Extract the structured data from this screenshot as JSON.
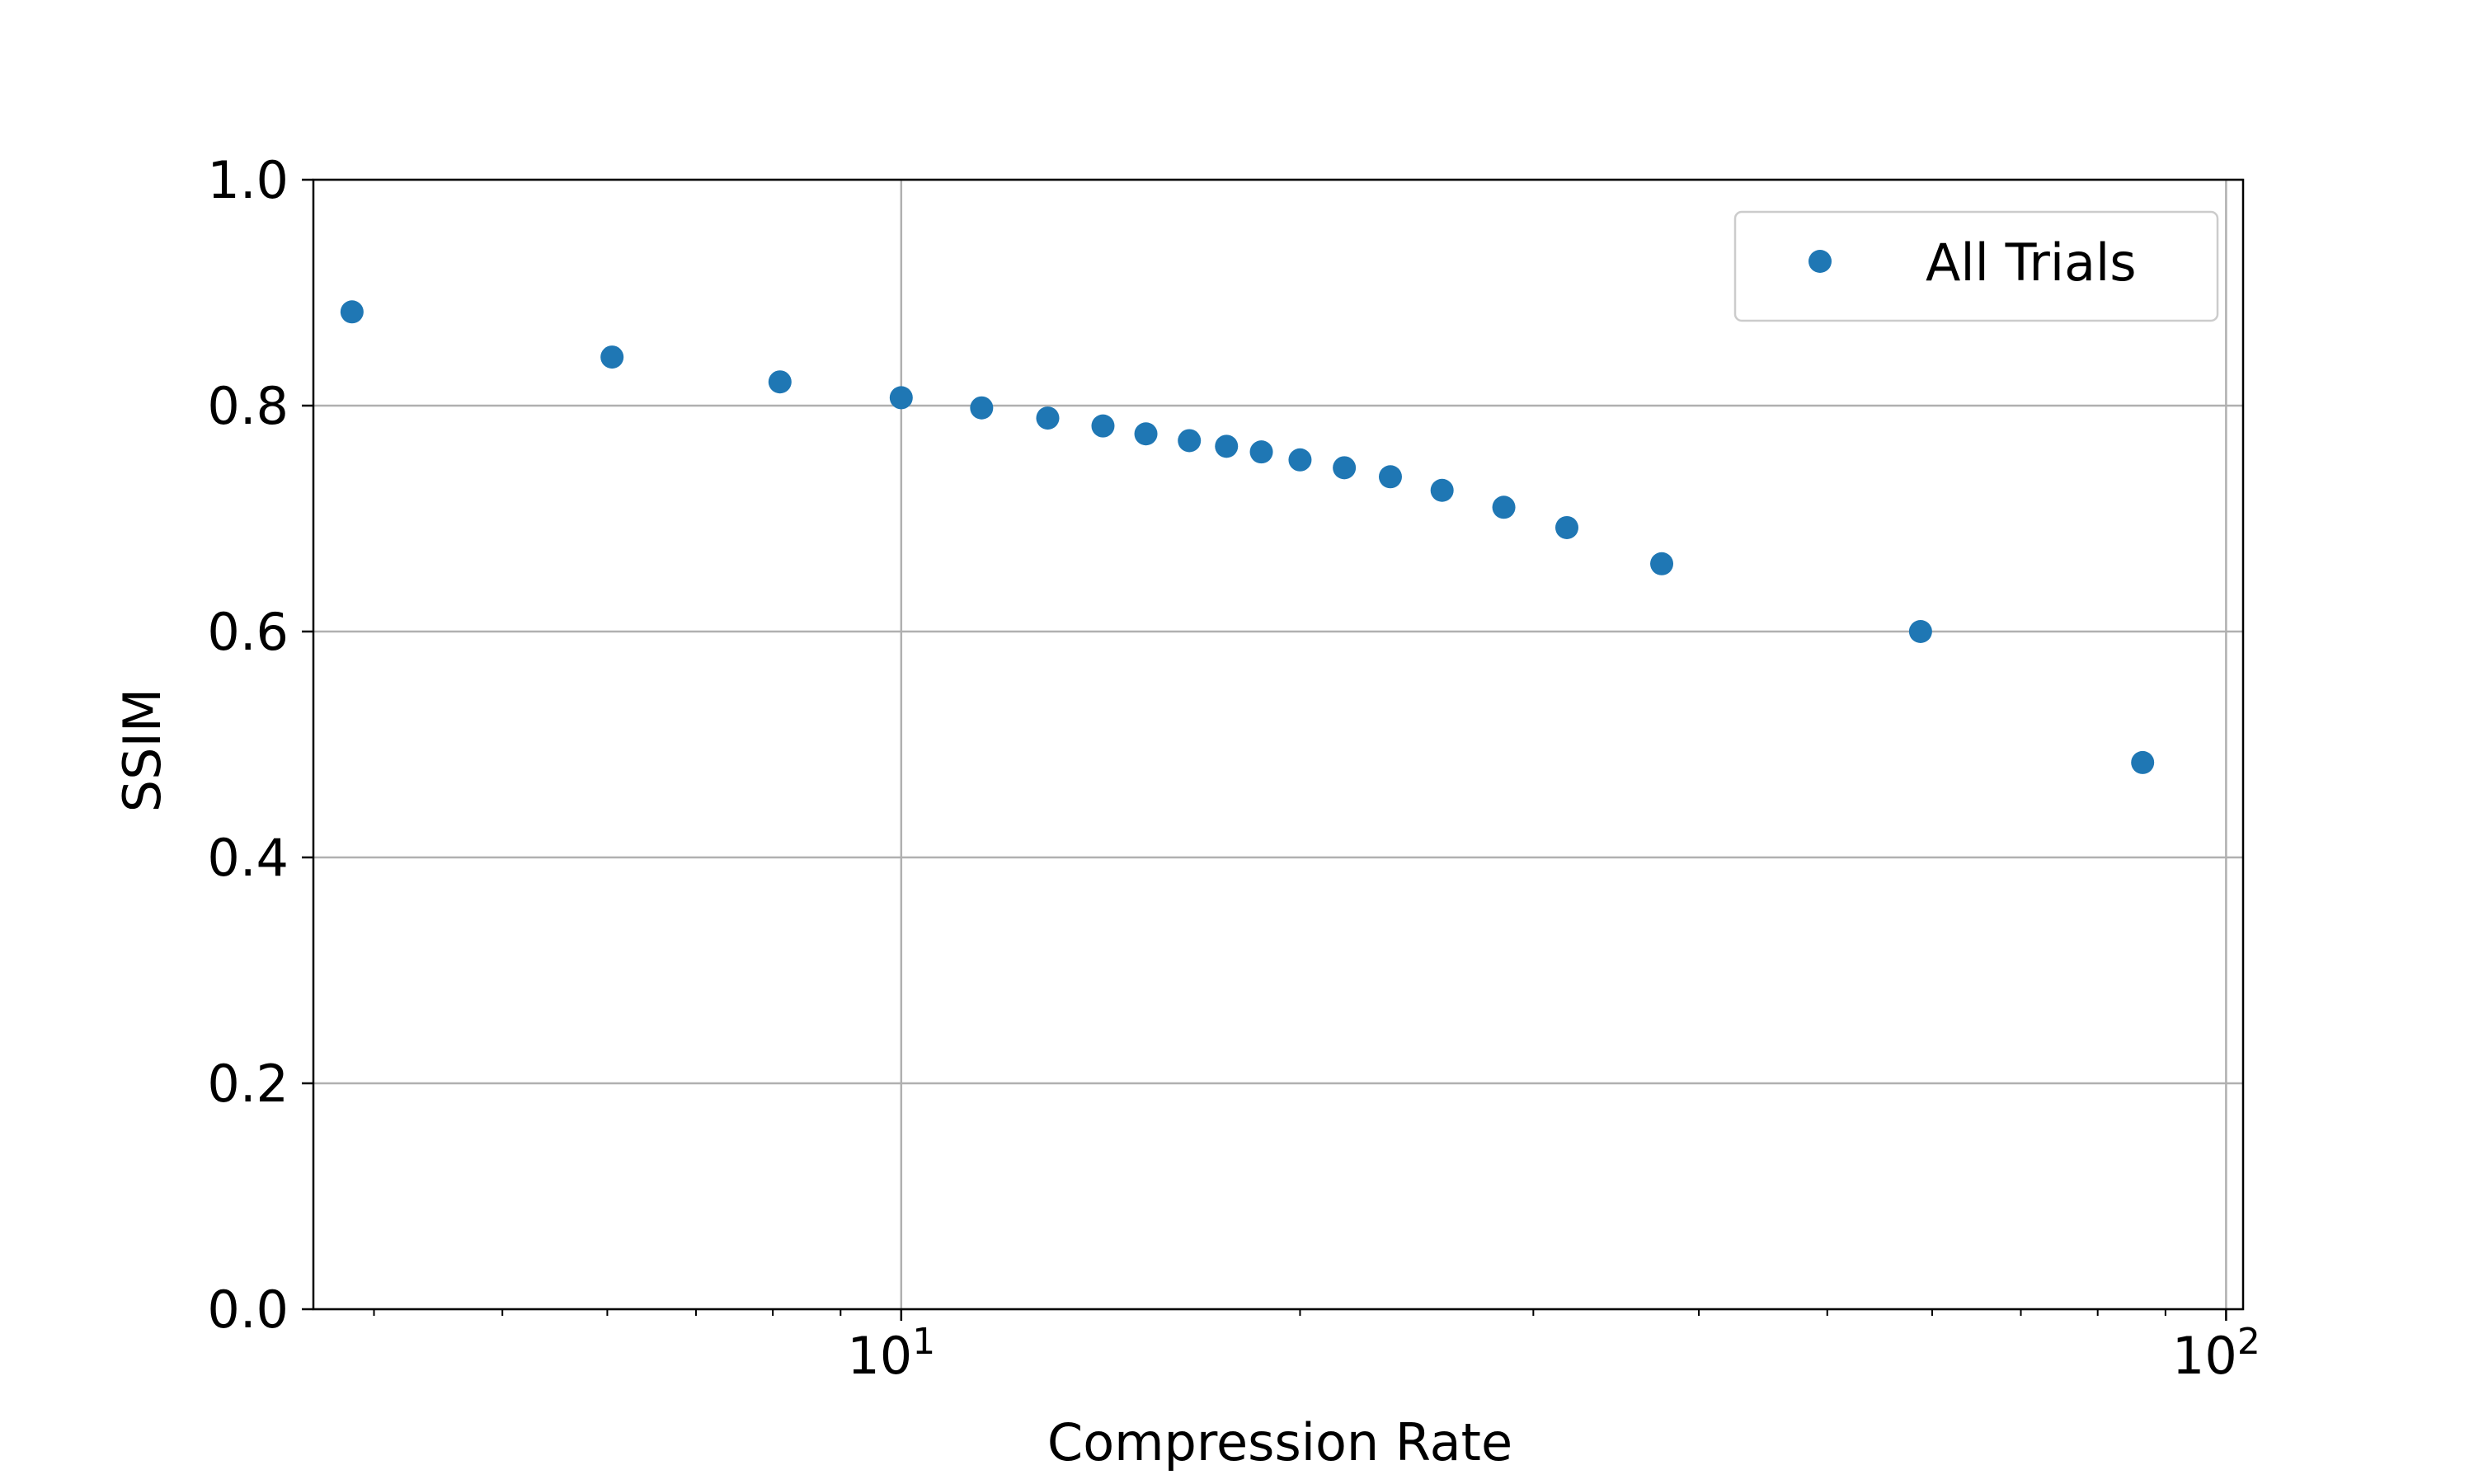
{
  "chart_data": {
    "type": "scatter",
    "xlabel": "Compression Rate",
    "ylabel": "SSIM",
    "xscale": "log",
    "xlim": [
      3.6,
      103
    ],
    "ylim": [
      0,
      1.0
    ],
    "grid": "major",
    "legend_position": "top-right",
    "series": [
      {
        "name": "All Trials",
        "color": "#1f77b4",
        "x": [
          3.85,
          6.05,
          8.1,
          10.0,
          11.5,
          12.9,
          14.2,
          15.3,
          16.5,
          17.6,
          18.7,
          20.0,
          21.6,
          23.4,
          25.6,
          28.5,
          31.8,
          37.5,
          58.8,
          86.5
        ],
        "y": [
          0.883,
          0.843,
          0.821,
          0.807,
          0.798,
          0.789,
          0.782,
          0.775,
          0.769,
          0.764,
          0.759,
          0.752,
          0.745,
          0.737,
          0.725,
          0.71,
          0.692,
          0.66,
          0.6,
          0.484
        ]
      }
    ],
    "yticks": [
      "0.0",
      "0.2",
      "0.4",
      "0.6",
      "0.8",
      "1.0"
    ],
    "yticks_values": [
      0,
      0.2,
      0.4,
      0.6,
      0.8,
      1.0
    ],
    "xticks": [
      {
        "value": 10,
        "base": "10",
        "exp": "1"
      },
      {
        "value": 100,
        "base": "10",
        "exp": "2"
      }
    ],
    "xminor": [
      4,
      5,
      6,
      7,
      8,
      9,
      20,
      30,
      40,
      50,
      60,
      70,
      80,
      90
    ]
  }
}
